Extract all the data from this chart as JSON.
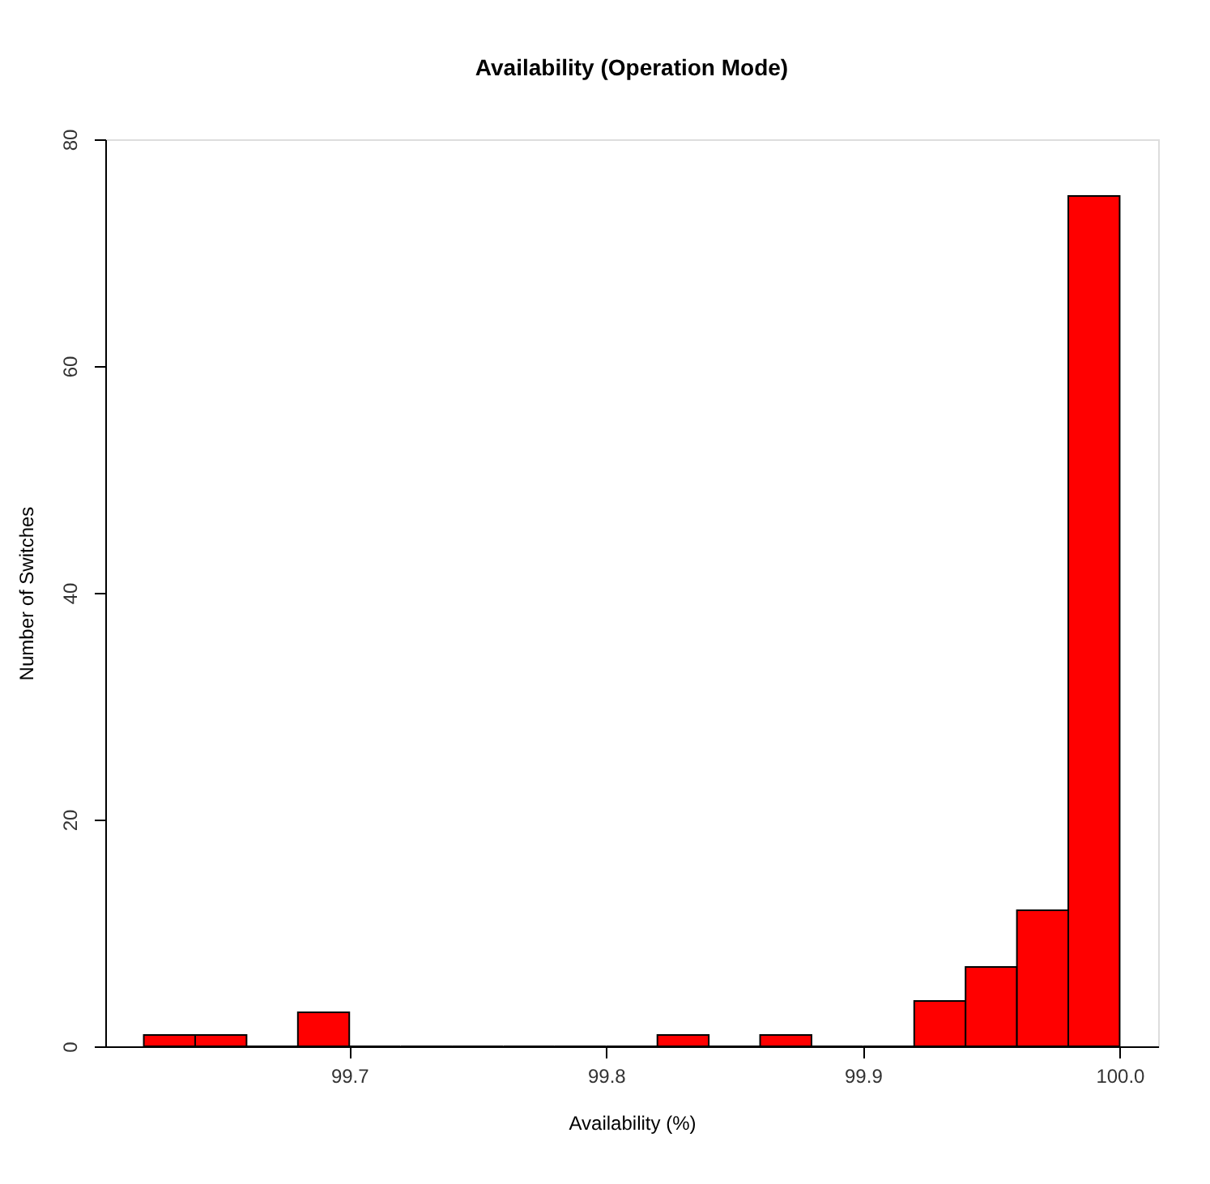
{
  "chart_data": {
    "type": "histogram",
    "title": "Availability (Operation Mode)",
    "xlabel": "Availability (%)",
    "ylabel": "Number of Switches",
    "bins": [
      99.62,
      99.64,
      99.66,
      99.68,
      99.7,
      99.72,
      99.74,
      99.76,
      99.78,
      99.8,
      99.82,
      99.84,
      99.86,
      99.88,
      99.9,
      99.92,
      99.94,
      99.96,
      99.98,
      100.0
    ],
    "values": [
      1,
      1,
      0,
      3,
      0,
      0,
      0,
      0,
      0,
      0,
      1,
      0,
      1,
      0,
      0,
      4,
      7,
      12,
      75
    ],
    "color": "#ff0000",
    "xlim": [
      99.605,
      100.015
    ],
    "xticks": [
      {
        "value": 99.7,
        "label": "99.7"
      },
      {
        "value": 99.8,
        "label": "99.8"
      },
      {
        "value": 99.9,
        "label": "99.9"
      },
      {
        "value": 100.0,
        "label": "100.0"
      }
    ],
    "ylim": [
      0,
      80
    ],
    "yticks": [
      0,
      20,
      40,
      60,
      80
    ],
    "grid": false
  }
}
